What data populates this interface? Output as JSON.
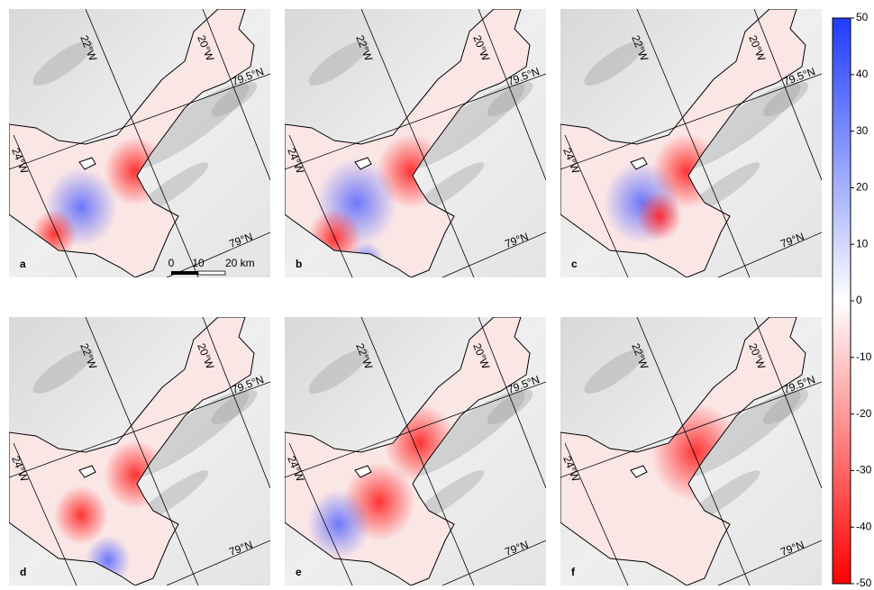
{
  "panels": [
    {
      "label": "a"
    },
    {
      "label": "b"
    },
    {
      "label": "c"
    },
    {
      "label": "d"
    },
    {
      "label": "e"
    },
    {
      "label": "f"
    }
  ],
  "graticule": {
    "lon_22": "22°W",
    "lon_20": "20°W",
    "lon_24": "24°W",
    "lat_795": "79.5°N",
    "lat_79": "79°N"
  },
  "scale_bar": {
    "ticks": [
      "0",
      "10"
    ],
    "end_label": "20 km"
  },
  "colorbar": {
    "ylim": [
      -50,
      50
    ],
    "yticks": [
      50,
      40,
      30,
      20,
      10,
      0,
      -10,
      -20,
      -30,
      -40,
      -50
    ]
  }
}
